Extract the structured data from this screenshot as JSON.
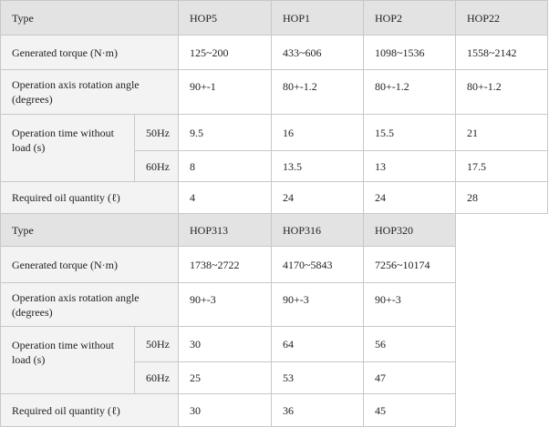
{
  "tables": [
    {
      "header": [
        "Type",
        "HOP5",
        "HOP1",
        "HOP2",
        "HOP22"
      ],
      "rows": [
        {
          "label": "Generated torque (N·m)",
          "cells": [
            "125~200",
            "433~606",
            "1098~1536",
            "1558~2142"
          ]
        },
        {
          "label": "Operation axis rotation angle (degrees)",
          "cells": [
            "90+-1",
            "80+-1.2",
            "80+-1.2",
            "80+-1.2"
          ]
        },
        {
          "label": "Operation time without load (s)",
          "sub": [
            {
              "label": "50Hz",
              "cells": [
                "9.5",
                "16",
                "15.5",
                "21"
              ]
            },
            {
              "label": "60Hz",
              "cells": [
                "8",
                "13.5",
                "13",
                "17.5"
              ]
            }
          ]
        },
        {
          "label": "Required oil quantity (ℓ)",
          "cells": [
            "4",
            "24",
            "24",
            "28"
          ]
        }
      ]
    },
    {
      "header": [
        "Type",
        "HOP313",
        "HOP316",
        "HOP320"
      ],
      "rows": [
        {
          "label": "Generated torque (N·m)",
          "cells": [
            "1738~2722",
            "4170~5843",
            "7256~10174"
          ]
        },
        {
          "label": "Operation axis rotation angle (degrees)",
          "cells": [
            "90+-3",
            "90+-3",
            "90+-3"
          ]
        },
        {
          "label": "Operation time without load (s)",
          "sub": [
            {
              "label": "50Hz",
              "cells": [
                "30",
                "64",
                "56"
              ]
            },
            {
              "label": "60Hz",
              "cells": [
                "25",
                "53",
                "47"
              ]
            }
          ]
        },
        {
          "label": "Required oil quantity (ℓ)",
          "cells": [
            "30",
            "36",
            "45"
          ]
        }
      ]
    }
  ]
}
